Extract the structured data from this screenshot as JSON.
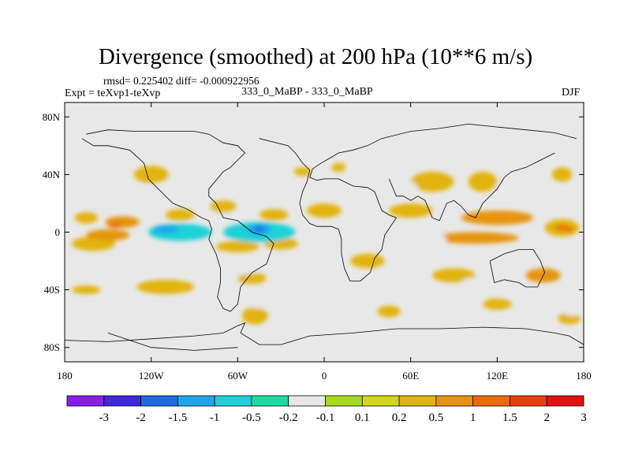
{
  "chart_data": {
    "type": "heatmap",
    "title": "Divergence (smoothed) at 200 hPa (10**6 m/s)",
    "stats": {
      "text": "rmsd= 0.225402 diff= -0.000922956",
      "rmsd": 0.225402,
      "diff": -0.000922956
    },
    "experiment": "Expt = teXvp1-teXvp",
    "case": "333_0_MaBP - 333_0_MaBP",
    "season": "DJF",
    "xlim": [
      -180,
      180
    ],
    "ylim": [
      -90,
      90
    ],
    "x_ticks": [
      {
        "value": -180,
        "label": "180"
      },
      {
        "value": -120,
        "label": "120W"
      },
      {
        "value": -60,
        "label": "60W"
      },
      {
        "value": 0,
        "label": "0"
      },
      {
        "value": 60,
        "label": "60E"
      },
      {
        "value": 120,
        "label": "120E"
      },
      {
        "value": 180,
        "label": "180"
      }
    ],
    "y_ticks": [
      {
        "value": 80,
        "label": "80N"
      },
      {
        "value": 40,
        "label": "40N"
      },
      {
        "value": 0,
        "label": "0"
      },
      {
        "value": -40,
        "label": "40S"
      },
      {
        "value": -80,
        "label": "80S"
      }
    ],
    "background_color": "#e8e8e8",
    "colorbar": {
      "colors": [
        "#8a1ee8",
        "#3c28e0",
        "#1f68e8",
        "#1ea6e6",
        "#1ad2d8",
        "#16dea0",
        "#e8e8e8",
        "#a6da1c",
        "#d2d814",
        "#e2b40e",
        "#e6940c",
        "#ec6a0c",
        "#ec3c0e",
        "#e41010"
      ],
      "levels": [
        {
          "value": -3,
          "label": "-3"
        },
        {
          "value": -2,
          "label": "-2"
        },
        {
          "value": -1.5,
          "label": "-1.5"
        },
        {
          "value": -1,
          "label": "-1"
        },
        {
          "value": -0.5,
          "label": "-0.5"
        },
        {
          "value": -0.2,
          "label": "-0.2"
        },
        {
          "value": -0.1,
          "label": "-0.1"
        },
        {
          "value": 0.1,
          "label": "0.1"
        },
        {
          "value": 0.2,
          "label": "0.2"
        },
        {
          "value": 0.5,
          "label": "0.5"
        },
        {
          "value": 1,
          "label": "1"
        },
        {
          "value": 1.5,
          "label": "1.5"
        },
        {
          "value": 2,
          "label": "2"
        },
        {
          "value": 3,
          "label": "3"
        }
      ]
    },
    "regions": [
      {
        "value": 0.3,
        "lon": -165,
        "lat": 10,
        "rx": 8,
        "ry": 4
      },
      {
        "value": 0.7,
        "lon": -140,
        "lat": 7,
        "rx": 12,
        "ry": 4
      },
      {
        "value": 0.3,
        "lon": -100,
        "lat": 12,
        "rx": 10,
        "ry": 4
      },
      {
        "value": 0.3,
        "lon": -70,
        "lat": 18,
        "rx": 9,
        "ry": 4
      },
      {
        "value": 0.3,
        "lon": -35,
        "lat": 12,
        "rx": 10,
        "ry": 4
      },
      {
        "value": 0.3,
        "lon": 0,
        "lat": 15,
        "rx": 12,
        "ry": 5
      },
      {
        "value": 0.3,
        "lon": 60,
        "lat": 15,
        "rx": 15,
        "ry": 5
      },
      {
        "value": 0.7,
        "lon": 120,
        "lat": 10,
        "rx": 25,
        "ry": 5
      },
      {
        "value": 0.3,
        "lon": 165,
        "lat": 3,
        "rx": 12,
        "ry": 6
      },
      {
        "value": 0.7,
        "lon": 105,
        "lat": -4,
        "rx": 30,
        "ry": 4
      },
      {
        "value": 0.3,
        "lon": -160,
        "lat": -8,
        "rx": 15,
        "ry": 5
      },
      {
        "value": 0.7,
        "lon": -150,
        "lat": -2,
        "rx": 15,
        "ry": 4
      },
      {
        "value": 0.3,
        "lon": -60,
        "lat": -10,
        "rx": 15,
        "ry": 4
      },
      {
        "value": 0.3,
        "lon": -30,
        "lat": -8,
        "rx": 12,
        "ry": 4
      },
      {
        "value": 0.3,
        "lon": 30,
        "lat": -20,
        "rx": 12,
        "ry": 5
      },
      {
        "value": 0.3,
        "lon": 90,
        "lat": -30,
        "rx": 15,
        "ry": 5
      },
      {
        "value": 0.7,
        "lon": 152,
        "lat": -30,
        "rx": 12,
        "ry": 5
      },
      {
        "value": 0.3,
        "lon": -165,
        "lat": -40,
        "rx": 10,
        "ry": 3
      },
      {
        "value": 0.3,
        "lon": -110,
        "lat": -38,
        "rx": 20,
        "ry": 5
      },
      {
        "value": 0.3,
        "lon": -50,
        "lat": -32,
        "rx": 10,
        "ry": 4
      },
      {
        "value": 0.3,
        "lon": -48,
        "lat": -58,
        "rx": 9,
        "ry": 6
      },
      {
        "value": 0.3,
        "lon": 45,
        "lat": -55,
        "rx": 8,
        "ry": 4
      },
      {
        "value": 0.3,
        "lon": 120,
        "lat": -50,
        "rx": 10,
        "ry": 4
      },
      {
        "value": 0.3,
        "lon": 170,
        "lat": -60,
        "rx": 8,
        "ry": 4
      },
      {
        "value": 0.3,
        "lon": 75,
        "lat": 35,
        "rx": 15,
        "ry": 7
      },
      {
        "value": 0.3,
        "lon": 110,
        "lat": 35,
        "rx": 10,
        "ry": 7
      },
      {
        "value": 0.3,
        "lon": -120,
        "lat": 40,
        "rx": 12,
        "ry": 6
      },
      {
        "value": 0.3,
        "lon": -15,
        "lat": 42,
        "rx": 6,
        "ry": 3
      },
      {
        "value": 0.3,
        "lon": 10,
        "lat": 45,
        "rx": 5,
        "ry": 3
      },
      {
        "value": 0.3,
        "lon": 165,
        "lat": 40,
        "rx": 7,
        "ry": 5
      },
      {
        "value": -0.15,
        "lon": -165,
        "lat": 22,
        "rx": 15,
        "ry": 5
      },
      {
        "value": -0.15,
        "lon": -125,
        "lat": 26,
        "rx": 15,
        "ry": 6
      },
      {
        "value": -0.15,
        "lon": -90,
        "lat": 30,
        "rx": 12,
        "ry": 5
      },
      {
        "value": -0.15,
        "lon": 50,
        "lat": 30,
        "rx": 15,
        "ry": 7
      },
      {
        "value": -0.15,
        "lon": 130,
        "lat": 30,
        "rx": 12,
        "ry": 5
      },
      {
        "value": -0.15,
        "lon": 160,
        "lat": 20,
        "rx": 12,
        "ry": 5
      },
      {
        "value": -0.7,
        "lon": -100,
        "lat": 0,
        "rx": 22,
        "ry": 6
      },
      {
        "value": -0.7,
        "lon": -45,
        "lat": 0,
        "rx": 25,
        "ry": 7
      },
      {
        "value": -0.15,
        "lon": 30,
        "lat": 0,
        "rx": 25,
        "ry": 7
      },
      {
        "value": -0.15,
        "lon": 70,
        "lat": -5,
        "rx": 15,
        "ry": 5
      },
      {
        "value": -0.15,
        "lon": -130,
        "lat": -25,
        "rx": 18,
        "ry": 5
      },
      {
        "value": -0.15,
        "lon": -60,
        "lat": -25,
        "rx": 15,
        "ry": 5
      },
      {
        "value": -0.15,
        "lon": 0,
        "lat": -28,
        "rx": 12,
        "ry": 4
      },
      {
        "value": -0.15,
        "lon": 110,
        "lat": -35,
        "rx": 15,
        "ry": 4
      },
      {
        "value": -0.15,
        "lon": 150,
        "lat": -15,
        "rx": 12,
        "ry": 4
      },
      {
        "value": -0.15,
        "lon": -175,
        "lat": -28,
        "rx": 8,
        "ry": 4
      },
      {
        "value": -0.15,
        "lon": -45,
        "lat": -50,
        "rx": 6,
        "ry": 3
      },
      {
        "value": -0.15,
        "lon": 130,
        "lat": -40,
        "rx": 8,
        "ry": 3
      },
      {
        "value": -0.15,
        "lon": 172,
        "lat": -55,
        "rx": 6,
        "ry": 3
      },
      {
        "value": -1.25,
        "lon": -110,
        "lat": 2,
        "rx": 9,
        "ry": 3
      },
      {
        "value": -1.25,
        "lon": -45,
        "lat": 2,
        "rx": 8,
        "ry": 4
      },
      {
        "value": -1.75,
        "lon": -45,
        "lat": 2,
        "rx": 3,
        "ry": 2
      },
      {
        "value": 1.25,
        "lon": -145,
        "lat": 5,
        "rx": 5,
        "ry": 2
      },
      {
        "value": 1.25,
        "lon": 165,
        "lat": 3,
        "rx": 5,
        "ry": 2
      },
      {
        "value": 1.75,
        "lon": 170,
        "lat": 2,
        "rx": 2,
        "ry": 1.5
      }
    ],
    "coastlines": [
      [
        [
          -45,
          65
        ],
        [
          -25,
          60
        ],
        [
          -20,
          55
        ],
        [
          -15,
          48
        ],
        [
          -10,
          43
        ],
        [
          -12,
          35
        ],
        [
          -15,
          28
        ],
        [
          -17,
          20
        ],
        [
          -15,
          12
        ],
        [
          -10,
          6
        ],
        [
          -5,
          4
        ],
        [
          5,
          4
        ],
        [
          10,
          2
        ],
        [
          12,
          -5
        ],
        [
          12,
          -15
        ],
        [
          14,
          -25
        ],
        [
          18,
          -34
        ],
        [
          25,
          -34
        ],
        [
          32,
          -28
        ],
        [
          35,
          -18
        ],
        [
          40,
          -12
        ],
        [
          42,
          -2
        ],
        [
          50,
          10
        ],
        [
          45,
          12
        ],
        [
          40,
          15
        ],
        [
          35,
          28
        ],
        [
          30,
          31
        ],
        [
          20,
          32
        ],
        [
          10,
          37
        ],
        [
          0,
          37
        ],
        [
          -5,
          36
        ],
        [
          -10,
          38
        ],
        [
          -8,
          44
        ],
        [
          -2,
          48
        ],
        [
          5,
          52
        ],
        [
          10,
          55
        ],
        [
          20,
          57
        ],
        [
          30,
          60
        ],
        [
          40,
          65
        ],
        [
          60,
          70
        ],
        [
          80,
          72
        ],
        [
          100,
          75
        ],
        [
          120,
          73
        ],
        [
          140,
          71
        ],
        [
          160,
          69
        ],
        [
          175,
          65
        ]
      ],
      [
        [
          45,
          37
        ],
        [
          50,
          25
        ],
        [
          55,
          25
        ],
        [
          60,
          22
        ],
        [
          65,
          25
        ],
        [
          70,
          22
        ],
        [
          75,
          10
        ],
        [
          80,
          8
        ],
        [
          85,
          20
        ],
        [
          90,
          22
        ],
        [
          95,
          18
        ],
        [
          100,
          12
        ],
        [
          105,
          10
        ],
        [
          110,
          20
        ],
        [
          120,
          30
        ],
        [
          125,
          38
        ],
        [
          130,
          42
        ],
        [
          140,
          45
        ],
        [
          150,
          50
        ],
        [
          160,
          55
        ]
      ],
      [
        [
          -168,
          65
        ],
        [
          -160,
          60
        ],
        [
          -150,
          60
        ],
        [
          -135,
          57
        ],
        [
          -125,
          48
        ],
        [
          -122,
          37
        ],
        [
          -115,
          30
        ],
        [
          -105,
          20
        ],
        [
          -95,
          16
        ],
        [
          -85,
          10
        ],
        [
          -80,
          8
        ],
        [
          -78,
          2
        ],
        [
          -80,
          -5
        ],
        [
          -75,
          -15
        ],
        [
          -72,
          -25
        ],
        [
          -72,
          -35
        ],
        [
          -74,
          -45
        ],
        [
          -70,
          -53
        ],
        [
          -65,
          -55
        ],
        [
          -60,
          -50
        ],
        [
          -58,
          -38
        ],
        [
          -50,
          -28
        ],
        [
          -40,
          -22
        ],
        [
          -35,
          -8
        ],
        [
          -40,
          -3
        ],
        [
          -50,
          0
        ],
        [
          -60,
          8
        ],
        [
          -70,
          10
        ],
        [
          -75,
          20
        ],
        [
          -80,
          25
        ],
        [
          -80,
          30
        ],
        [
          -75,
          36
        ],
        [
          -70,
          42
        ],
        [
          -65,
          45
        ],
        [
          -60,
          50
        ],
        [
          -55,
          55
        ],
        [
          -60,
          60
        ],
        [
          -70,
          62
        ],
        [
          -80,
          68
        ],
        [
          -90,
          70
        ],
        [
          -110,
          70
        ],
        [
          -130,
          70
        ],
        [
          -150,
          71
        ],
        [
          -165,
          68
        ]
      ],
      [
        [
          115,
          -20
        ],
        [
          118,
          -35
        ],
        [
          125,
          -33
        ],
        [
          135,
          -35
        ],
        [
          140,
          -38
        ],
        [
          148,
          -38
        ],
        [
          153,
          -28
        ],
        [
          150,
          -20
        ],
        [
          145,
          -12
        ],
        [
          135,
          -12
        ],
        [
          125,
          -15
        ],
        [
          115,
          -20
        ]
      ],
      [
        [
          -180,
          -75
        ],
        [
          -150,
          -76
        ],
        [
          -120,
          -74
        ],
        [
          -90,
          -72
        ],
        [
          -70,
          -70
        ],
        [
          -60,
          -65
        ],
        [
          -55,
          -63
        ],
        [
          -58,
          -70
        ],
        [
          -45,
          -78
        ],
        [
          -30,
          -78
        ],
        [
          -10,
          -72
        ],
        [
          20,
          -70
        ],
        [
          50,
          -67
        ],
        [
          80,
          -67
        ],
        [
          110,
          -66
        ],
        [
          140,
          -67
        ],
        [
          160,
          -70
        ],
        [
          170,
          -72
        ],
        [
          180,
          -78
        ]
      ],
      [
        [
          -150,
          -70
        ],
        [
          -120,
          -80
        ],
        [
          -90,
          -82
        ],
        [
          -60,
          -80
        ]
      ]
    ]
  }
}
